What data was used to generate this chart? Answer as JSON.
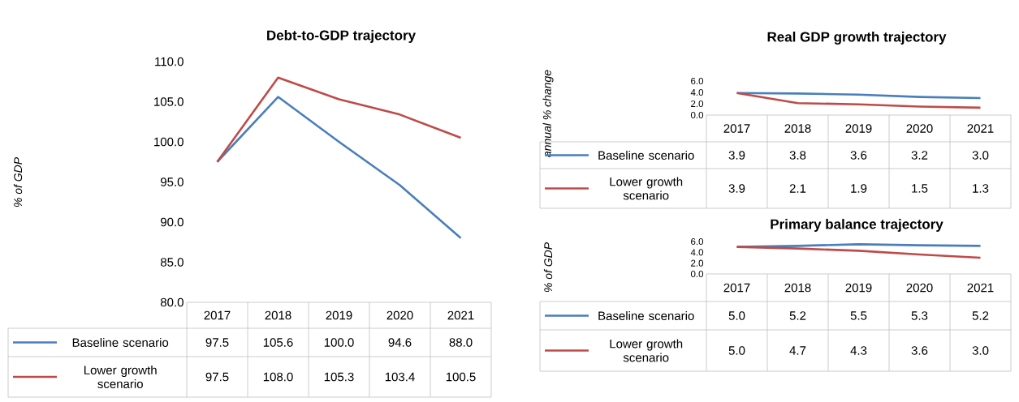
{
  "chart_data": [
    {
      "type": "line",
      "title": "Debt-to-GDP trajectory",
      "ylabel": "% of GDP",
      "categories": [
        "2017",
        "2018",
        "2019",
        "2020",
        "2021"
      ],
      "series": [
        {
          "name": "Baseline scenario",
          "color": "#4a7ebb",
          "values": [
            97.5,
            105.6,
            100.0,
            94.6,
            88.0
          ],
          "value_labels": [
            "97.5",
            "105.6",
            "100.0",
            "94.6",
            "88.0"
          ]
        },
        {
          "name": "Lower growth scenario",
          "color": "#be4b48",
          "values": [
            97.5,
            108.0,
            105.3,
            103.4,
            100.5
          ],
          "value_labels": [
            "97.5",
            "108.0",
            "105.3",
            "103.4",
            "100.5"
          ]
        }
      ],
      "ylim": [
        80,
        110
      ],
      "yticks": [
        {
          "value": 80,
          "label": "80.0"
        },
        {
          "value": 85,
          "label": "85.0"
        },
        {
          "value": 90,
          "label": "90.0"
        },
        {
          "value": 95,
          "label": "95.0"
        },
        {
          "value": 100,
          "label": "100.0"
        },
        {
          "value": 105,
          "label": "105.0"
        },
        {
          "value": 110,
          "label": "110.0"
        }
      ],
      "legend": "bottom",
      "grid": false,
      "marker": "none",
      "line_style": "solid"
    },
    {
      "type": "line",
      "title": "Real GDP growth trajectory",
      "ylabel": "annual % change",
      "categories": [
        "2017",
        "2018",
        "2019",
        "2020",
        "2021"
      ],
      "legend": "bottom",
      "grid": false,
      "marker": "none",
      "line_style": "solid",
      "series": [
        {
          "name": "Baseline scenario",
          "color": "#4a7ebb",
          "values": [
            3.9,
            3.8,
            3.6,
            3.2,
            3.0
          ],
          "value_labels": [
            "3.9",
            "3.8",
            "3.6",
            "3.2",
            "3.0"
          ]
        },
        {
          "name": "Lower growth scenario",
          "color": "#be4b48",
          "values": [
            3.9,
            2.1,
            1.9,
            1.5,
            1.3
          ],
          "value_labels": [
            "3.9",
            "2.1",
            "1.9",
            "1.5",
            "1.3"
          ]
        }
      ],
      "ylim": [
        0,
        6
      ],
      "yticks": [
        {
          "value": 0,
          "label": "0.0"
        },
        {
          "value": 2,
          "label": "2.0"
        },
        {
          "value": 4,
          "label": "4.0"
        },
        {
          "value": 6,
          "label": "6.0"
        }
      ]
    },
    {
      "type": "line",
      "title": "Primary balance trajectory",
      "ylabel": "% of GDP",
      "categories": [
        "2017",
        "2018",
        "2019",
        "2020",
        "2021"
      ],
      "legend": "bottom",
      "grid": false,
      "marker": "none",
      "line_style": "solid",
      "series": [
        {
          "name": "Baseline scenario",
          "color": "#4a7ebb",
          "values": [
            5.0,
            5.2,
            5.5,
            5.3,
            5.2
          ],
          "value_labels": [
            "5.0",
            "5.2",
            "5.5",
            "5.3",
            "5.2"
          ]
        },
        {
          "name": "Lower growth scenario",
          "color": "#be4b48",
          "values": [
            5.0,
            4.7,
            4.3,
            3.6,
            3.0
          ],
          "value_labels": [
            "5.0",
            "4.7",
            "4.3",
            "3.6",
            "3.0"
          ]
        }
      ],
      "ylim": [
        0,
        6
      ],
      "yticks": [
        {
          "value": 0,
          "label": "0.0"
        },
        {
          "value": 2,
          "label": "2.0"
        },
        {
          "value": 4,
          "label": "4.0"
        },
        {
          "value": 6,
          "label": "6.0"
        }
      ]
    }
  ]
}
